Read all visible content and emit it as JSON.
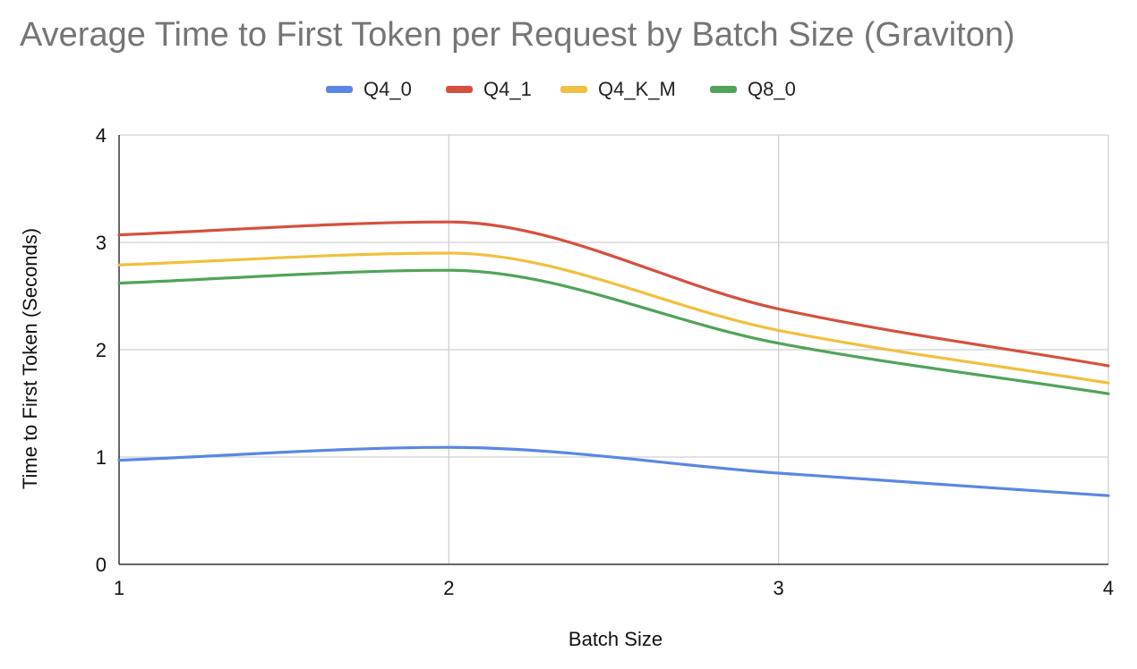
{
  "chart_data": {
    "type": "line",
    "title": "Average Time to First Token per Request by Batch Size (Graviton)",
    "xlabel": "Batch Size",
    "ylabel": "Time to First Token (Seconds)",
    "x": [
      1,
      2,
      3,
      4
    ],
    "xticks": [
      "1",
      "2",
      "3",
      "4"
    ],
    "yticks": [
      "0",
      "1",
      "2",
      "3",
      "4"
    ],
    "xlim": [
      1,
      4
    ],
    "ylim": [
      0,
      4
    ],
    "grid": true,
    "smooth": true,
    "legend_position": "top",
    "series": [
      {
        "name": "Q4_0",
        "color": "#5b86e5",
        "values": [
          0.97,
          1.09,
          0.85,
          0.64
        ]
      },
      {
        "name": "Q4_1",
        "color": "#d6503f",
        "values": [
          3.07,
          3.19,
          2.38,
          1.85
        ]
      },
      {
        "name": "Q4_K_M",
        "color": "#f0c03e",
        "values": [
          2.79,
          2.9,
          2.18,
          1.69
        ]
      },
      {
        "name": "Q8_0",
        "color": "#51a35a",
        "values": [
          2.62,
          2.74,
          2.06,
          1.59
        ]
      }
    ]
  }
}
